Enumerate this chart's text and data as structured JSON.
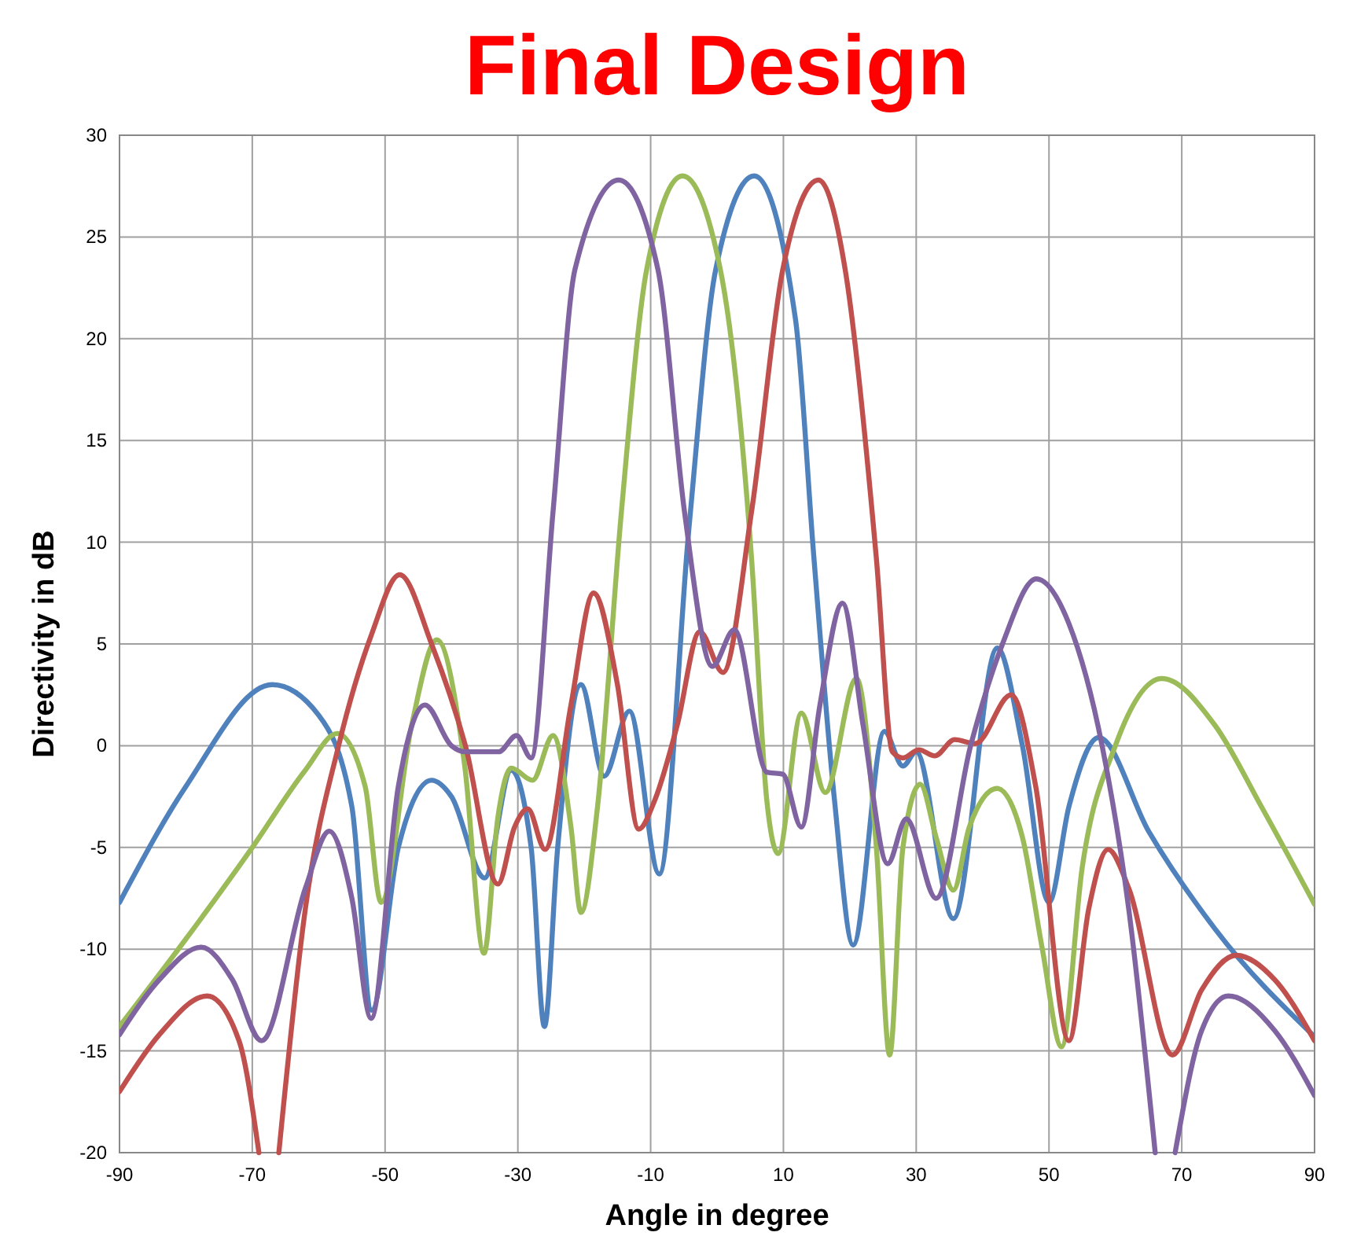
{
  "chart_data": {
    "type": "line",
    "title": "Final Design",
    "xlabel": "Angle in degree",
    "ylabel": "Directivity in dB",
    "xlim": [
      -90,
      90
    ],
    "xticks": [
      -90,
      -70,
      -50,
      -30,
      -10,
      10,
      30,
      50,
      70,
      90
    ],
    "ylim": [
      -20,
      30
    ],
    "yticks": [
      -20,
      -15,
      -10,
      -5,
      0,
      5,
      10,
      15,
      20,
      25,
      30
    ],
    "grid": true,
    "marker": "none",
    "line_style": "solid",
    "series": [
      {
        "color": "#4f81bd",
        "x": [
          -90,
          -80,
          -67,
          -60,
          -55,
          -52,
          -48,
          -43,
          -40,
          -35,
          -31,
          -28,
          -26,
          -24,
          -20.5,
          -17,
          -13.2,
          -8.7,
          -4.2,
          -0.2,
          5.6,
          11.8,
          14.6,
          17.7,
          20.5,
          25.2,
          28,
          30,
          35.6,
          42.2,
          46,
          50,
          53,
          57.5,
          65,
          75,
          90
        ],
        "values": [
          -7.7,
          -2,
          3,
          1.5,
          -3,
          -13,
          -5,
          -1.7,
          -2.5,
          -6.5,
          -1.2,
          -5,
          -13.8,
          -5,
          3,
          -1.5,
          1.7,
          -6.3,
          10.8,
          23.4,
          28,
          21,
          9.2,
          -2.7,
          -9.8,
          0.7,
          -1,
          -0.3,
          -8.5,
          4.8,
          0,
          -7.7,
          -3,
          0.4,
          -4.2,
          -9,
          -14.3
        ]
      },
      {
        "color": "#9bbb59",
        "x": [
          -90,
          -80,
          -70,
          -62,
          -57.2,
          -53,
          -50.6,
          -46,
          -42.2,
          -38,
          -35.1,
          -33,
          -31,
          -27.8,
          -24.7,
          -22,
          -20.5,
          -18,
          -14.4,
          -10.6,
          -5.2,
          0.5,
          5.2,
          7.5,
          9.2,
          12.7,
          16.3,
          21,
          24,
          26,
          28,
          30.6,
          33,
          35.6,
          38,
          42.2,
          46,
          49,
          51.9,
          55,
          60,
          67,
          75,
          82,
          90
        ],
        "values": [
          -13.8,
          -9.5,
          -5,
          -1.2,
          0.6,
          -2,
          -7.7,
          1,
          5.2,
          -1,
          -10.2,
          -3.5,
          -1.1,
          -1.7,
          0.5,
          -4,
          -8.2,
          -3,
          11.5,
          23.4,
          28,
          23.4,
          9.2,
          -2.7,
          -5.3,
          1.6,
          -2.3,
          3.3,
          -5,
          -15.2,
          -5,
          -1.9,
          -4.5,
          -7.1,
          -4,
          -2.1,
          -4.5,
          -10,
          -14.8,
          -6,
          0,
          3.3,
          1,
          -3,
          -7.8
        ]
      },
      {
        "color": "#c0504d",
        "x": [
          -90,
          -84,
          -76.8,
          -72,
          -69,
          -67.5,
          -66,
          -62,
          -57,
          -52,
          -47.8,
          -43,
          -37.9,
          -33,
          -30.5,
          -28.5,
          -25.9,
          -22,
          -18.6,
          -15,
          -11.8,
          -9.4,
          -6,
          -2.6,
          0.9,
          5.2,
          9.9,
          15.3,
          19.3,
          24,
          26.4,
          28,
          30.4,
          32.8,
          35.8,
          38.9,
          44.3,
          48,
          53,
          56,
          58.9,
          62,
          68.6,
          73,
          78.2,
          84,
          90
        ],
        "values": [
          -17,
          -14.2,
          -12.3,
          -14.5,
          -20,
          null,
          -20,
          -8,
          0,
          5.5,
          8.4,
          5,
          0,
          -6.8,
          -4,
          -3.1,
          -5.1,
          2,
          7.5,
          3,
          -4.1,
          -2.7,
          1,
          5.6,
          3.6,
          11.5,
          23.4,
          27.8,
          23.4,
          9.2,
          -0.3,
          -0.6,
          -0.2,
          -0.5,
          0.3,
          0.1,
          2.5,
          -2,
          -14.5,
          -8,
          -5.1,
          -7,
          -15.2,
          -12,
          -10.3,
          -11.5,
          -14.5
        ]
      },
      {
        "color": "#8064a2",
        "x": [
          -90,
          -84,
          -77.7,
          -73,
          -68.6,
          -62,
          -58.4,
          -55,
          -52.1,
          -48,
          -44,
          -40,
          -37.9,
          -32.9,
          -30.2,
          -28,
          -24.7,
          -21.4,
          -14.8,
          -8.9,
          -4.9,
          -0.7,
          2.6,
          7.5,
          9.9,
          12.7,
          15.5,
          18.9,
          22,
          25.7,
          28.5,
          33,
          38.2,
          43,
          48.1,
          53,
          58,
          62,
          66,
          67.5,
          69,
          73,
          77,
          84,
          90
        ],
        "values": [
          -14.2,
          -11.5,
          -9.9,
          -11.5,
          -14.5,
          -7,
          -4.2,
          -7.5,
          -13.4,
          -2,
          2,
          0,
          -0.3,
          -0.3,
          0.5,
          -0.6,
          11.5,
          23.4,
          27.8,
          23.4,
          11.5,
          3.9,
          5.7,
          -1.3,
          -1.4,
          -4,
          2,
          7,
          1,
          -5.8,
          -3.6,
          -7.5,
          0,
          5,
          8.2,
          6,
          0,
          -8,
          -20,
          null,
          -20,
          -14,
          -12.3,
          -14,
          -17.2
        ]
      }
    ]
  }
}
